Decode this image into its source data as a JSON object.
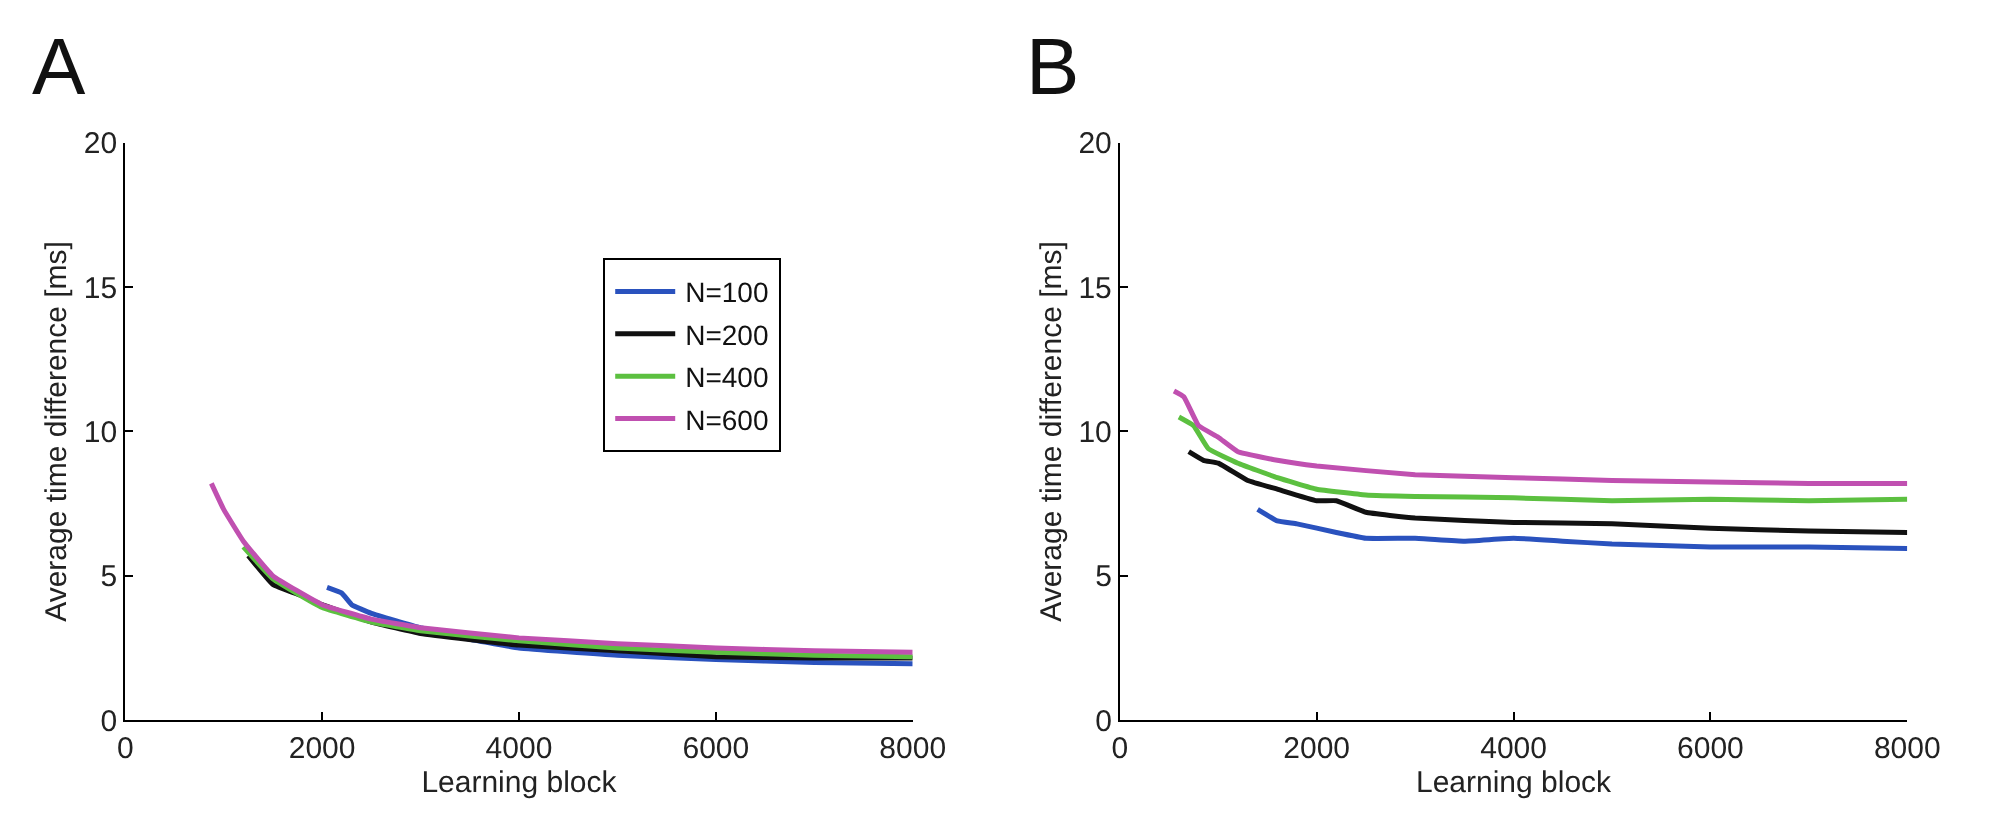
{
  "chart_data": [
    {
      "type": "line",
      "title": "A",
      "xlabel": "Learning block",
      "ylabel": "Average time difference [ms]",
      "xlim": [
        0,
        8000
      ],
      "xticks": [
        0,
        2000,
        4000,
        6000,
        8000
      ],
      "ylim": [
        0,
        20
      ],
      "yticks": [
        0,
        5,
        10,
        15,
        20
      ],
      "legend": "top right",
      "marker": "none",
      "line_style": "solid",
      "series": [
        {
          "name": "N=100",
          "color": "#2a52be",
          "x": [
            2050,
            2200,
            2300,
            2500,
            3000,
            3500,
            4000,
            5000,
            6000,
            7000,
            8000
          ],
          "values": [
            4.6,
            4.4,
            4.0,
            3.7,
            3.2,
            2.8,
            2.5,
            2.25,
            2.1,
            2.0,
            1.95
          ]
        },
        {
          "name": "N=200",
          "color": "#111111",
          "x": [
            1250,
            1500,
            1800,
            2000,
            2500,
            3000,
            4000,
            5000,
            6000,
            7000,
            8000
          ],
          "values": [
            5.7,
            4.7,
            4.3,
            4.0,
            3.4,
            3.0,
            2.6,
            2.4,
            2.2,
            2.15,
            2.15
          ]
        },
        {
          "name": "N=400",
          "color": "#5cc040",
          "x": [
            1200,
            1500,
            2000,
            2500,
            3000,
            4000,
            5000,
            6000,
            7000,
            8000
          ],
          "values": [
            6.0,
            4.9,
            3.9,
            3.4,
            3.1,
            2.75,
            2.5,
            2.35,
            2.25,
            2.2
          ]
        },
        {
          "name": "N=600",
          "color": "#c050b0",
          "x": [
            875,
            1000,
            1200,
            1500,
            2000,
            2500,
            3000,
            4000,
            5000,
            6000,
            7000,
            8000
          ],
          "values": [
            8.2,
            7.3,
            6.2,
            5.0,
            4.0,
            3.5,
            3.2,
            2.85,
            2.65,
            2.5,
            2.4,
            2.35
          ]
        }
      ]
    },
    {
      "type": "line",
      "title": "B",
      "xlabel": "Learning block",
      "ylabel": "Average time difference [ms]",
      "xlim": [
        0,
        8000
      ],
      "xticks": [
        0,
        2000,
        4000,
        6000,
        8000
      ],
      "ylim": [
        0,
        20
      ],
      "yticks": [
        0,
        5,
        10,
        15,
        20
      ],
      "marker": "none",
      "line_style": "solid",
      "series": [
        {
          "color": "#2a52be",
          "x": [
            1400,
            1600,
            1800,
            2200,
            2500,
            3000,
            3500,
            4000,
            4500,
            5000,
            6000,
            7000,
            8000
          ],
          "values": [
            7.3,
            6.9,
            6.8,
            6.5,
            6.3,
            6.3,
            6.2,
            6.3,
            6.2,
            6.1,
            6.0,
            6.0,
            5.95
          ]
        },
        {
          "color": "#111111",
          "x": [
            700,
            850,
            1000,
            1300,
            1600,
            2000,
            2200,
            2500,
            3000,
            4000,
            5000,
            6000,
            7000,
            8000
          ],
          "values": [
            9.3,
            9.0,
            8.9,
            8.3,
            8.0,
            7.6,
            7.6,
            7.2,
            7.0,
            6.85,
            6.8,
            6.65,
            6.55,
            6.5
          ]
        },
        {
          "color": "#5cc040",
          "x": [
            600,
            750,
            900,
            1200,
            1600,
            2000,
            2500,
            3000,
            4000,
            5000,
            6000,
            7000,
            8000
          ],
          "values": [
            10.5,
            10.2,
            9.4,
            8.9,
            8.4,
            8.0,
            7.8,
            7.75,
            7.7,
            7.6,
            7.65,
            7.6,
            7.65
          ]
        },
        {
          "color": "#c050b0",
          "x": [
            550,
            650,
            800,
            1000,
            1200,
            1600,
            2000,
            3000,
            4000,
            5000,
            6000,
            7000,
            8000
          ],
          "values": [
            11.4,
            11.2,
            10.2,
            9.8,
            9.3,
            9.0,
            8.8,
            8.5,
            8.4,
            8.3,
            8.25,
            8.2,
            8.2
          ]
        }
      ]
    }
  ]
}
